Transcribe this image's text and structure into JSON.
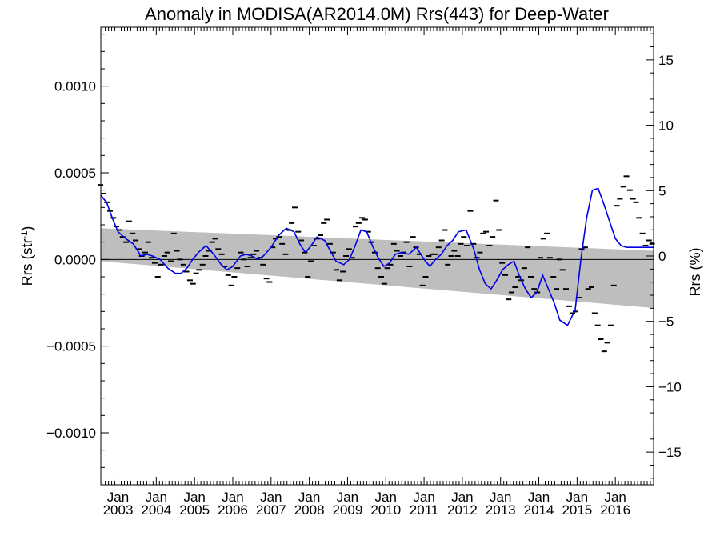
{
  "chart_data": {
    "type": "line",
    "title": "Anomaly in MODISA(AR2014.0M) Rrs(443) for Deep-Water",
    "ylabel_left_main": "Rrs (str",
    "ylabel_left_sup": "-1",
    "ylabel_left_end": ")",
    "ylabel_right": "Rrs (%)",
    "xlim": [
      2002.55,
      2017.0
    ],
    "ylim_left": [
      -0.0013,
      0.00134
    ],
    "ylim_right": [
      -17.5,
      17.5
    ],
    "left_ticks": [
      {
        "v": 0.001,
        "label": "0.0010"
      },
      {
        "v": 0.0005,
        "label": "0.0005"
      },
      {
        "v": 0.0,
        "label": "0.0000"
      },
      {
        "v": -0.0005,
        "label": "−0.0005"
      },
      {
        "v": -0.001,
        "label": "−0.0010"
      }
    ],
    "right_ticks": [
      {
        "v": 15,
        "label": "15"
      },
      {
        "v": 10,
        "label": "10"
      },
      {
        "v": 5,
        "label": "5"
      },
      {
        "v": 0,
        "label": "0"
      },
      {
        "v": -5,
        "label": "−5"
      },
      {
        "v": -10,
        "label": "−10"
      },
      {
        "v": -15,
        "label": "−15"
      }
    ],
    "x_ticks": [
      {
        "v": 2003,
        "month": "Jan",
        "year": "2003"
      },
      {
        "v": 2004,
        "month": "Jan",
        "year": "2004"
      },
      {
        "v": 2005,
        "month": "Jan",
        "year": "2005"
      },
      {
        "v": 2006,
        "month": "Jan",
        "year": "2006"
      },
      {
        "v": 2007,
        "month": "Jan",
        "year": "2007"
      },
      {
        "v": 2008,
        "month": "Jan",
        "year": "2008"
      },
      {
        "v": 2009,
        "month": "Jan",
        "year": "2009"
      },
      {
        "v": 2010,
        "month": "Jan",
        "year": "2010"
      },
      {
        "v": 2011,
        "month": "Jan",
        "year": "2011"
      },
      {
        "v": 2012,
        "month": "Jan",
        "year": "2012"
      },
      {
        "v": 2013,
        "month": "Jan",
        "year": "2013"
      },
      {
        "v": 2014,
        "month": "Jan",
        "year": "2014"
      },
      {
        "v": 2015,
        "month": "Jan",
        "year": "2015"
      },
      {
        "v": 2016,
        "month": "Jan",
        "year": "2016"
      }
    ],
    "uncertainty_band": {
      "x": [
        2002.55,
        2017.0
      ],
      "upper": [
        0.00018,
        5e-05
      ],
      "lower": [
        -1e-05,
        -0.00028
      ]
    },
    "series": [
      {
        "kind": "smoothed",
        "x": [
          2002.55,
          2002.7,
          2002.85,
          2003.0,
          2003.2,
          2003.4,
          2003.6,
          2003.75,
          2003.9,
          2004.1,
          2004.3,
          2004.5,
          2004.65,
          2004.8,
          2004.95,
          2005.1,
          2005.3,
          2005.5,
          2005.7,
          2005.85,
          2006.0,
          2006.2,
          2006.35,
          2006.5,
          2006.65,
          2006.8,
          2007.0,
          2007.2,
          2007.4,
          2007.6,
          2007.75,
          2007.9,
          2008.05,
          2008.2,
          2008.4,
          2008.55,
          2008.7,
          2008.9,
          2009.05,
          2009.2,
          2009.35,
          2009.5,
          2009.65,
          2009.8,
          2009.95,
          2010.1,
          2010.25,
          2010.4,
          2010.6,
          2010.8,
          2011.0,
          2011.15,
          2011.3,
          2011.45,
          2011.6,
          2011.75,
          2011.9,
          2012.1,
          2012.3,
          2012.45,
          2012.6,
          2012.75,
          2012.9,
          2013.05,
          2013.2,
          2013.35,
          2013.5,
          2013.65,
          2013.8,
          2013.95,
          2014.1,
          2014.25,
          2014.4,
          2014.55,
          2014.75,
          2014.95,
          2015.1,
          2015.25,
          2015.4,
          2015.55,
          2015.7,
          2015.85,
          2016.0,
          2016.15,
          2016.3,
          2016.45,
          2016.6,
          2016.75,
          2016.9,
          2017.0
        ],
        "y": [
          0.00037,
          0.00033,
          0.00024,
          0.00016,
          0.00012,
          9e-05,
          2e-05,
          3e-05,
          2e-05,
          0.0,
          -5e-05,
          -8e-05,
          -8e-05,
          -5e-05,
          0.0,
          4e-05,
          8e-05,
          3e-05,
          -3e-05,
          -6e-05,
          -4e-05,
          2e-05,
          3e-05,
          2e-05,
          0.0,
          2e-05,
          7e-05,
          0.00014,
          0.00018,
          0.00016,
          9e-05,
          4e-05,
          8e-05,
          0.00013,
          0.00011,
          5e-05,
          -1e-05,
          -3e-05,
          0.0,
          8e-05,
          0.00017,
          0.00016,
          8e-05,
          1e-05,
          -4e-05,
          -2e-05,
          3e-05,
          4e-05,
          3e-05,
          7e-05,
          0.0,
          -4e-05,
          0.0,
          3e-05,
          8e-05,
          0.00011,
          0.00016,
          0.00017,
          6e-05,
          -6e-05,
          -0.00014,
          -0.00017,
          -0.00012,
          -6e-05,
          -3e-05,
          -1e-05,
          -0.0001,
          -0.00017,
          -0.00022,
          -0.00019,
          -9e-05,
          -0.00017,
          -0.00025,
          -0.00035,
          -0.00038,
          -0.00029,
          0.0,
          0.00024,
          0.0004,
          0.00041,
          0.00032,
          0.00022,
          0.00012,
          8e-05,
          7e-05,
          7e-05,
          7e-05,
          7e-05,
          7e-05,
          7e-05
        ],
        "color": "#0000e6"
      },
      {
        "kind": "monthly_points",
        "x": [
          2002.54,
          2002.62,
          2002.71,
          2002.79,
          2002.88,
          2002.96,
          2003.04,
          2003.12,
          2003.21,
          2003.29,
          2003.38,
          2003.46,
          2003.54,
          2003.62,
          2003.71,
          2003.79,
          2003.88,
          2003.96,
          2004.04,
          2004.12,
          2004.21,
          2004.29,
          2004.38,
          2004.46,
          2004.54,
          2004.62,
          2004.71,
          2004.79,
          2004.88,
          2004.96,
          2005.04,
          2005.12,
          2005.21,
          2005.29,
          2005.38,
          2005.46,
          2005.54,
          2005.62,
          2005.71,
          2005.79,
          2005.88,
          2005.96,
          2006.04,
          2006.12,
          2006.21,
          2006.29,
          2006.38,
          2006.46,
          2006.54,
          2006.62,
          2006.71,
          2006.79,
          2006.88,
          2006.96,
          2007.04,
          2007.12,
          2007.21,
          2007.29,
          2007.38,
          2007.46,
          2007.54,
          2007.62,
          2007.71,
          2007.79,
          2007.88,
          2007.96,
          2008.04,
          2008.12,
          2008.21,
          2008.29,
          2008.38,
          2008.46,
          2008.54,
          2008.62,
          2008.71,
          2008.79,
          2008.88,
          2008.96,
          2009.04,
          2009.12,
          2009.21,
          2009.29,
          2009.38,
          2009.46,
          2009.54,
          2009.62,
          2009.71,
          2009.79,
          2009.88,
          2009.96,
          2010.04,
          2010.12,
          2010.21,
          2010.29,
          2010.38,
          2010.46,
          2010.54,
          2010.62,
          2010.71,
          2010.79,
          2010.88,
          2010.96,
          2011.04,
          2011.12,
          2011.21,
          2011.29,
          2011.38,
          2011.46,
          2011.54,
          2011.62,
          2011.71,
          2011.79,
          2011.88,
          2011.96,
          2012.04,
          2012.12,
          2012.21,
          2012.29,
          2012.38,
          2012.46,
          2012.54,
          2012.62,
          2012.71,
          2012.79,
          2012.88,
          2012.96,
          2013.04,
          2013.12,
          2013.21,
          2013.29,
          2013.38,
          2013.46,
          2013.54,
          2013.62,
          2013.71,
          2013.79,
          2013.88,
          2013.96,
          2014.04,
          2014.12,
          2014.21,
          2014.29,
          2014.38,
          2014.46,
          2014.54,
          2014.62,
          2014.71,
          2014.79,
          2014.88,
          2014.96,
          2015.04,
          2015.12,
          2015.21,
          2015.29,
          2015.38,
          2015.46,
          2015.54,
          2015.62,
          2015.71,
          2015.79,
          2015.88,
          2015.96,
          2016.04,
          2016.12,
          2016.21,
          2016.29,
          2016.38,
          2016.46,
          2016.54,
          2016.62,
          2016.71,
          2016.79,
          2016.88,
          2016.96
        ],
        "y": [
          0.00043,
          0.00038,
          0.00033,
          0.00028,
          0.00024,
          0.00019,
          0.00017,
          0.00013,
          0.0001,
          0.00022,
          0.00015,
          0.00011,
          6e-05,
          2e-05,
          4e-05,
          0.0001,
          1e-05,
          -2e-05,
          -0.0001,
          -3e-05,
          2e-05,
          4e-05,
          -1e-05,
          0.00015,
          5e-05,
          0.0,
          -3e-05,
          -7e-05,
          -0.00012,
          -0.00014,
          -8e-05,
          -6e-05,
          -3e-05,
          2e-05,
          5e-05,
          0.0001,
          0.00012,
          6e-05,
          3e-05,
          -4e-05,
          -9e-05,
          -0.00015,
          -0.0001,
          -5e-05,
          4e-05,
          0.0,
          -4e-05,
          1e-05,
          3e-05,
          5e-05,
          1e-05,
          -3e-05,
          -0.00011,
          -0.00013,
          7e-05,
          0.00012,
          0.00013,
          9e-05,
          3e-05,
          0.00017,
          0.00021,
          0.0003,
          0.00016,
          0.00011,
          4e-05,
          -0.0001,
          -1e-05,
          8e-05,
          0.00012,
          0.00014,
          0.00021,
          0.00023,
          9e-05,
          4e-05,
          -6e-05,
          -0.00012,
          -7e-05,
          2e-05,
          6e-05,
          1e-05,
          0.00019,
          0.00021,
          0.00024,
          0.00023,
          0.00016,
          0.0001,
          4e-05,
          -5e-05,
          -0.0001,
          -0.00014,
          -5e-05,
          -3e-05,
          9e-05,
          5e-05,
          2e-05,
          4e-05,
          0.0001,
          -4e-05,
          0.00013,
          7e-05,
          3e-05,
          -0.00015,
          -0.0001,
          2e-05,
          3e-05,
          3e-05,
          7e-05,
          0.00011,
          0.00017,
          -3e-05,
          2e-05,
          5e-05,
          2e-05,
          9e-05,
          0.00013,
          8e-05,
          0.00028,
          9e-05,
          1e-05,
          4e-05,
          0.00015,
          0.00016,
          8e-05,
          0.00013,
          0.00034,
          0.00017,
          -2e-05,
          -9e-05,
          -0.00023,
          -0.00019,
          -0.00016,
          -0.0001,
          -0.00012,
          -5e-05,
          7e-05,
          -0.0001,
          -0.00017,
          -0.00019,
          1e-05,
          0.00012,
          0.00015,
          1e-05,
          -0.0001,
          -0.00017,
          0.0,
          -6e-05,
          -0.00017,
          -0.00027,
          -0.00031,
          -0.0003,
          -0.00022,
          6e-05,
          7e-05,
          -0.00017,
          -0.00016,
          -0.00031,
          -0.00038,
          -0.00046,
          -0.00053,
          -0.00048,
          -0.00038,
          -0.00015,
          0.00031,
          0.00035,
          0.00042,
          0.00048,
          0.0004,
          0.00035,
          0.00033,
          0.00024,
          0.00015,
          8e-05,
          0.00011,
          9e-05
        ]
      }
    ],
    "zero_line": 0,
    "grid": false
  }
}
